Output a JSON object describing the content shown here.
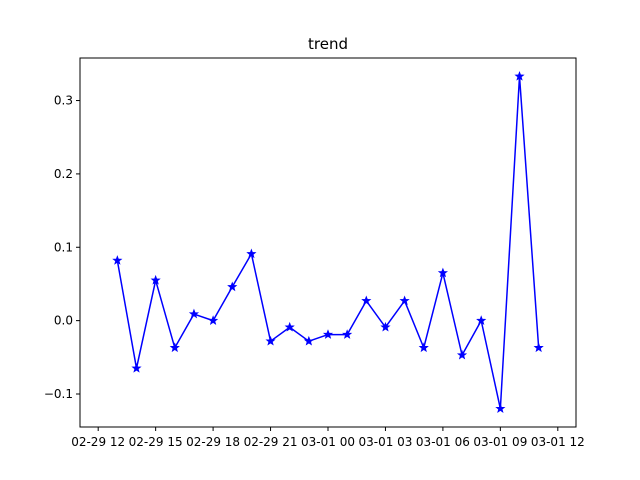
{
  "chart_data": {
    "type": "line",
    "title": "trend",
    "xlabel": "",
    "ylabel": "",
    "x": [
      "02-29 13:00",
      "02-29 14:00",
      "02-29 15:00",
      "02-29 16:00",
      "02-29 17:00",
      "02-29 18:00",
      "02-29 19:00",
      "02-29 20:00",
      "02-29 21:00",
      "02-29 22:00",
      "02-29 23:00",
      "03-01 00:00",
      "03-01 01:00",
      "03-01 02:00",
      "03-01 03:00",
      "03-01 04:00",
      "03-01 05:00",
      "03-01 06:00",
      "03-01 07:00",
      "03-01 08:00",
      "03-01 09:00",
      "03-01 10:00",
      "03-01 11:00"
    ],
    "series": [
      {
        "values": [
          0.082,
          -0.065,
          0.055,
          -0.037,
          0.009,
          0.0,
          0.046,
          0.091,
          -0.028,
          -0.009,
          -0.028,
          -0.019,
          -0.019,
          0.027,
          -0.009,
          0.027,
          -0.037,
          0.065,
          -0.047,
          0.0,
          -0.12,
          0.333,
          -0.037
        ],
        "color": "#0000ff",
        "marker": "star"
      }
    ],
    "xlim": [
      "02-29 11:03",
      "03-01 12:57"
    ],
    "ylim": [
      -0.145,
      0.358
    ],
    "x_ticks": [
      {
        "at": "02-29 12:00",
        "label": "02-29 12"
      },
      {
        "at": "02-29 15:00",
        "label": "02-29 15"
      },
      {
        "at": "02-29 18:00",
        "label": "02-29 18"
      },
      {
        "at": "02-29 21:00",
        "label": "02-29 21"
      },
      {
        "at": "03-01 00:00",
        "label": "03-01 00"
      },
      {
        "at": "03-01 03:00",
        "label": "03-01 03"
      },
      {
        "at": "03-01 06:00",
        "label": "03-01 06"
      },
      {
        "at": "03-01 09:00",
        "label": "03-01 09"
      },
      {
        "at": "03-01 12:00",
        "label": "03-01 12"
      }
    ],
    "y_ticks": [
      {
        "value": -0.1,
        "label": "−0.1"
      },
      {
        "value": 0.0,
        "label": "0.0"
      },
      {
        "value": 0.1,
        "label": "0.1"
      },
      {
        "value": 0.2,
        "label": "0.2"
      },
      {
        "value": 0.3,
        "label": "0.3"
      }
    ],
    "grid": false,
    "legend": "none"
  }
}
